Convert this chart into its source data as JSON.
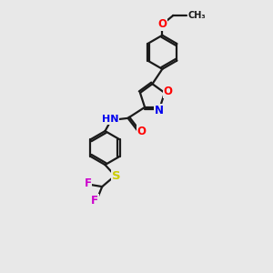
{
  "background_color": "#e8e8e8",
  "bond_color": "#1a1a1a",
  "atom_colors": {
    "O": "#ff0000",
    "N": "#0000ee",
    "S": "#cccc00",
    "F": "#cc00cc",
    "C": "#1a1a1a",
    "H": "#1a1a1a"
  },
  "figsize": [
    3.0,
    3.0
  ],
  "dpi": 100
}
